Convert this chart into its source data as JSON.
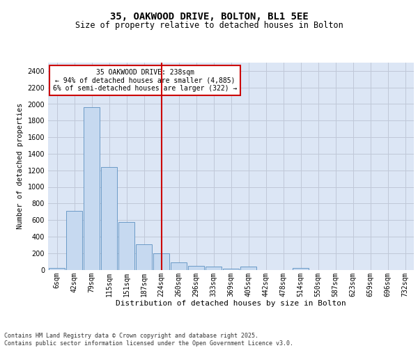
{
  "title_line1": "35, OAKWOOD DRIVE, BOLTON, BL1 5EE",
  "title_line2": "Size of property relative to detached houses in Bolton",
  "xlabel": "Distribution of detached houses by size in Bolton",
  "ylabel": "Number of detached properties",
  "footer_line1": "Contains HM Land Registry data © Crown copyright and database right 2025.",
  "footer_line2": "Contains public sector information licensed under the Open Government Licence v3.0.",
  "annotation_line1": "35 OAKWOOD DRIVE: 238sqm",
  "annotation_line2": "← 94% of detached houses are smaller (4,885)",
  "annotation_line3": "6% of semi-detached houses are larger (322) →",
  "vline_x_index": 6,
  "categories": [
    "6sqm",
    "42sqm",
    "79sqm",
    "115sqm",
    "151sqm",
    "187sqm",
    "224sqm",
    "260sqm",
    "296sqm",
    "333sqm",
    "369sqm",
    "405sqm",
    "442sqm",
    "478sqm",
    "514sqm",
    "550sqm",
    "587sqm",
    "623sqm",
    "659sqm",
    "696sqm",
    "732sqm"
  ],
  "bar_heights": [
    20,
    710,
    1960,
    1240,
    575,
    305,
    200,
    85,
    45,
    35,
    10,
    35,
    0,
    0,
    20,
    0,
    0,
    0,
    0,
    0,
    0
  ],
  "bar_color": "#c6d9f0",
  "bar_edge_color": "#5a8fc0",
  "vline_color": "#cc0000",
  "grid_color": "#c0c8d8",
  "bg_color": "#dce6f5",
  "ylim": [
    0,
    2500
  ],
  "yticks": [
    0,
    200,
    400,
    600,
    800,
    1000,
    1200,
    1400,
    1600,
    1800,
    2000,
    2200,
    2400
  ],
  "title_fontsize": 10,
  "subtitle_fontsize": 8.5,
  "ylabel_fontsize": 7.5,
  "xlabel_fontsize": 8,
  "tick_fontsize": 7,
  "footer_fontsize": 6,
  "annot_fontsize": 7
}
